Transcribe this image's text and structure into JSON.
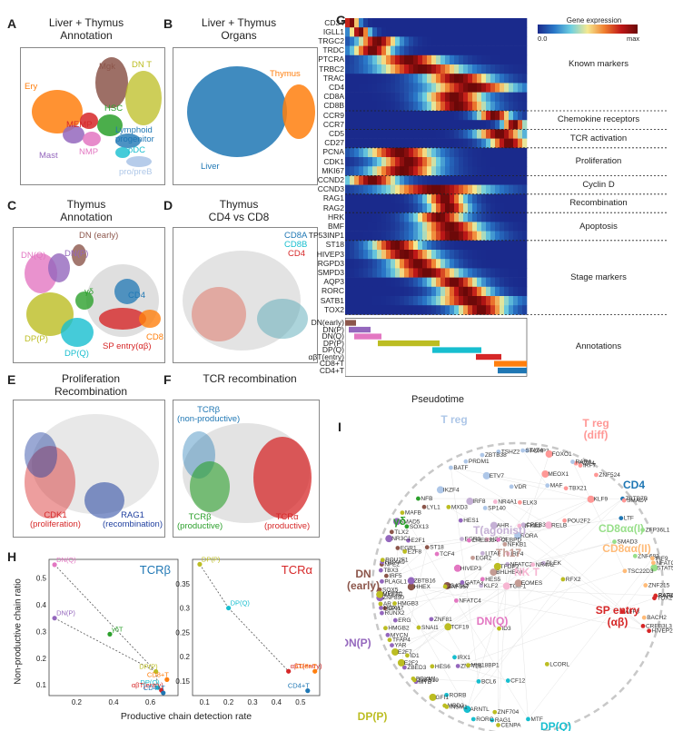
{
  "panels": {
    "A": {
      "letter": "A",
      "title": "Liver + Thymus\nAnnotation",
      "labels": {
        "mgk": "Mgk",
        "dnt": "DN T",
        "ery": "Ery",
        "hsc": "HSC",
        "memp": "MEMP",
        "lymph": "Lymphoid\nprogenitor",
        "mast": "Mast",
        "nmp": "NMP",
        "pdc": "pDC",
        "propreb": "pro/preB"
      }
    },
    "B": {
      "letter": "B",
      "title": "Liver + Thymus\nOrgans",
      "labels": {
        "thymus": "Thymus",
        "liver": "Liver"
      }
    },
    "C": {
      "letter": "C",
      "title": "Thymus\nAnnotation",
      "labels": {
        "dnearly": "DN (early)",
        "dnq": "DN(Q)",
        "dnp": "DN(P)",
        "gd": "γδ",
        "cd4": "CD4",
        "dpp": "DP(P)",
        "cd8": "CD8",
        "spentry": "SP entry(αβ)",
        "dpq": "DP(Q)"
      }
    },
    "D": {
      "letter": "D",
      "title": "Thymus\nCD4 vs CD8",
      "labels": {
        "cd8a": "CD8A",
        "cd8b": "CD8B",
        "cd4": "CD4"
      }
    },
    "E": {
      "letter": "E",
      "title": "Proliferation\nRecombination",
      "labels": {
        "cdk1": "CDK1\n(proliferation)",
        "rag1": "RAG1\n(recombination)"
      }
    },
    "F": {
      "letter": "F",
      "title": "TCR recombination",
      "labels": {
        "tcrb_np": "TCRβ\n(non-productive)",
        "tcrb_p": "TCRβ\n(productive)",
        "tcra_p": "TCRα\n(productive)"
      }
    },
    "G": {
      "letter": "G",
      "legend_title": "Gene expression",
      "legend_min": "0.0",
      "legend_max": "max",
      "xlabel": "Pseudotime"
    },
    "H": {
      "letter": "H",
      "ylabel": "Non-productive chain ratio",
      "xlabel": "Productive chain detection rate"
    },
    "I": {
      "letter": "I"
    }
  },
  "heatmap": {
    "genes": [
      "CD34",
      "IGLL1",
      "TRGC2",
      "TRDC",
      "PTCRA",
      "TRBC2",
      "TRAC",
      "CD4",
      "CD8A",
      "CD8B",
      "CCR9",
      "CCR7",
      "CD5",
      "CD27",
      "PCNA",
      "CDK1",
      "MKI67",
      "CCND2",
      "CCND3",
      "RAG1",
      "RAG2",
      "HRK",
      "BMF",
      "TP53INP1",
      "ST18",
      "HIVEP3",
      "RGPD3",
      "SMPD3",
      "AQP3",
      "RORC",
      "SATB1",
      "TOX2"
    ],
    "peaks": [
      0.03,
      0.08,
      0.18,
      0.15,
      0.35,
      0.42,
      0.62,
      0.7,
      0.6,
      0.62,
      0.82,
      0.93,
      0.85,
      0.9,
      0.3,
      0.35,
      0.32,
      0.15,
      0.5,
      0.55,
      0.57,
      0.52,
      0.58,
      0.6,
      0.28,
      0.33,
      0.4,
      0.45,
      0.6,
      0.66,
      0.7,
      0.75
    ],
    "widths": [
      0.05,
      0.06,
      0.12,
      0.12,
      0.2,
      0.25,
      0.2,
      0.25,
      0.18,
      0.18,
      0.1,
      0.07,
      0.14,
      0.12,
      0.2,
      0.18,
      0.2,
      0.15,
      0.3,
      0.12,
      0.12,
      0.15,
      0.18,
      0.2,
      0.15,
      0.18,
      0.16,
      0.2,
      0.15,
      0.15,
      0.22,
      0.15
    ],
    "sections": [
      {
        "name": "Known markers",
        "start": 0,
        "end": 9
      },
      {
        "name": "Chemokine receptors",
        "start": 10,
        "end": 11
      },
      {
        "name": "TCR activation",
        "start": 12,
        "end": 13
      },
      {
        "name": "Proliferation",
        "start": 14,
        "end": 16
      },
      {
        "name": "Cyclin D",
        "start": 17,
        "end": 18
      },
      {
        "name": "Recombination",
        "start": 19,
        "end": 20
      },
      {
        "name": "Apoptosis",
        "start": 21,
        "end": 23
      },
      {
        "name": "Stage markers",
        "start": 24,
        "end": 31
      }
    ],
    "annotations_label": "Annotations",
    "annotations": [
      {
        "name": "DN(early)",
        "color": "#8c564b",
        "start": 0.0,
        "end": 0.06
      },
      {
        "name": "DN(P)",
        "color": "#9467bd",
        "start": 0.02,
        "end": 0.14
      },
      {
        "name": "DN(Q)",
        "color": "#e377c2",
        "start": 0.05,
        "end": 0.2
      },
      {
        "name": "DP(P)",
        "color": "#bcbd22",
        "start": 0.18,
        "end": 0.52
      },
      {
        "name": "DP(Q)",
        "color": "#17becf",
        "start": 0.48,
        "end": 0.75
      },
      {
        "name": "αβT(entry)",
        "color": "#d62728",
        "start": 0.72,
        "end": 0.86
      },
      {
        "name": "CD8+T",
        "color": "#ff7f0e",
        "start": 0.82,
        "end": 1.0
      },
      {
        "name": "CD4+T",
        "color": "#1f77b4",
        "start": 0.84,
        "end": 1.0
      }
    ]
  },
  "chart_data": [
    {
      "type": "scatter",
      "title": "TCRβ",
      "xlabel": "Productive chain detection rate",
      "ylabel": "Non-productive chain ratio",
      "xticks": [
        0.2,
        0.4,
        0.6
      ],
      "yticks": [
        0.1,
        0.2,
        0.3,
        0.4,
        0.5
      ],
      "xlim": [
        0.05,
        0.75
      ],
      "ylim": [
        0.06,
        0.57
      ],
      "points": [
        {
          "label": "DN(Q)",
          "x": 0.08,
          "y": 0.55,
          "color": "#e377c2"
        },
        {
          "label": "DN(P)",
          "x": 0.08,
          "y": 0.35,
          "color": "#9467bd"
        },
        {
          "label": "γδT",
          "x": 0.38,
          "y": 0.29,
          "color": "#2ca02c"
        },
        {
          "label": "DP(P)",
          "x": 0.63,
          "y": 0.15,
          "color": "#bcbd22"
        },
        {
          "label": "DP(Q)",
          "x": 0.64,
          "y": 0.09,
          "color": "#17becf"
        },
        {
          "label": "CD8+T",
          "x": 0.69,
          "y": 0.12,
          "color": "#ff7f0e"
        },
        {
          "label": "αβT(entry)",
          "x": 0.66,
          "y": 0.08,
          "color": "#d62728"
        },
        {
          "label": "CD4+T",
          "x": 0.67,
          "y": 0.07,
          "color": "#1f77b4"
        }
      ],
      "arrows": [
        [
          0,
          3
        ],
        [
          1,
          3
        ],
        [
          3,
          4
        ]
      ]
    },
    {
      "type": "scatter",
      "title": "TCRα",
      "xticks": [
        0.1,
        0.2,
        0.3,
        0.4,
        0.5
      ],
      "yticks": [
        0.15,
        0.2,
        0.25,
        0.3,
        0.35
      ],
      "xlim": [
        0.05,
        0.58
      ],
      "ylim": [
        0.12,
        0.4
      ],
      "points": [
        {
          "label": "DP(P)",
          "x": 0.08,
          "y": 0.39,
          "color": "#bcbd22"
        },
        {
          "label": "DP(Q)",
          "x": 0.2,
          "y": 0.3,
          "color": "#17becf"
        },
        {
          "label": "αβT(entry)",
          "x": 0.45,
          "y": 0.17,
          "color": "#d62728"
        },
        {
          "label": "CD8+T",
          "x": 0.56,
          "y": 0.17,
          "color": "#ff7f0e"
        },
        {
          "label": "CD4+T",
          "x": 0.53,
          "y": 0.13,
          "color": "#1f77b4"
        }
      ],
      "arrows": [
        [
          0,
          1
        ],
        [
          1,
          2
        ]
      ]
    }
  ],
  "network": {
    "groups": [
      {
        "label": "T reg",
        "color": "#aec7e8"
      },
      {
        "label": "T reg\n(diff)",
        "color": "#ff9896"
      },
      {
        "label": "CD4",
        "color": "#1f77b4"
      },
      {
        "label": "CD8αα(I)",
        "color": "#98df8a"
      },
      {
        "label": "CD8αα(II)",
        "color": "#ffbb78"
      },
      {
        "label": "SP entry\n(αβ)",
        "color": "#d62728"
      },
      {
        "label": "γδ",
        "color": "#2ca02c"
      },
      {
        "label": "DN\n(early)",
        "color": "#8c564b"
      },
      {
        "label": "DN(P)",
        "color": "#9467bd"
      },
      {
        "label": "T(agonist)",
        "color": "#c5b0d5"
      },
      {
        "label": "NK T",
        "color": "#f7b6d2"
      },
      {
        "label": "Th17",
        "color": "#c49c94"
      },
      {
        "label": "DN(Q)",
        "color": "#e377c2"
      },
      {
        "label": "DP(P)",
        "color": "#bcbd22"
      },
      {
        "label": "DP(Q)",
        "color": "#17becf"
      }
    ],
    "genes": [
      {
        "g": "ETV7",
        "c": 0
      },
      {
        "g": "TSHZ2",
        "c": 0
      },
      {
        "g": "VDR",
        "c": 0
      },
      {
        "g": "TBX21",
        "c": 1
      },
      {
        "g": "IKZF4",
        "c": 1
      },
      {
        "g": "KLF9",
        "c": 1
      },
      {
        "g": "LTF",
        "c": 2
      },
      {
        "g": "PRDM1",
        "c": 0
      },
      {
        "g": "FOXP3",
        "c": 0
      },
      {
        "g": "SP140",
        "c": 0
      },
      {
        "g": "MEOX1",
        "c": 1
      },
      {
        "g": "ZNF524",
        "c": 1
      },
      {
        "g": "ZBTB7B",
        "c": 2
      },
      {
        "g": "ZBTB38",
        "c": 0
      },
      {
        "g": "POU2F2",
        "c": 1
      },
      {
        "g": "FOXO1",
        "c": 1
      },
      {
        "g": "ZNF683",
        "c": 3
      },
      {
        "g": "ZNF215",
        "c": 4
      },
      {
        "g": "IRF9",
        "c": 4
      },
      {
        "g": "MAF",
        "c": 0
      },
      {
        "g": "IKZF4",
        "c": 0
      },
      {
        "g": "STAT4",
        "c": 0
      },
      {
        "g": "SMAD7",
        "c": 1
      },
      {
        "g": "ELK3",
        "c": 1
      },
      {
        "g": "RARG",
        "c": 4
      },
      {
        "g": "RORA",
        "c": 0
      },
      {
        "g": "BATF",
        "c": 0
      },
      {
        "g": "RARA",
        "c": 0
      },
      {
        "g": "IRF7",
        "c": 1
      },
      {
        "g": "ZFP36L1",
        "c": 3
      },
      {
        "g": "STAT5A",
        "c": 3
      },
      {
        "g": "SOX13",
        "c": 6
      },
      {
        "g": "IRF5",
        "c": 7
      },
      {
        "g": "EGR1",
        "c": 7
      },
      {
        "g": "LITAF",
        "c": 9
      },
      {
        "g": "AHR",
        "c": 9
      },
      {
        "g": "NFATC2",
        "c": 9
      },
      {
        "g": "IRF4",
        "c": 10
      },
      {
        "g": "NFKB2",
        "c": 10
      },
      {
        "g": "NFB",
        "c": 6
      },
      {
        "g": "HHEX",
        "c": 7
      },
      {
        "g": "NFE2",
        "c": 7
      },
      {
        "g": "EGR3",
        "c": 9
      },
      {
        "g": "CREB3L2",
        "c": 9
      },
      {
        "g": "KLF2",
        "c": 9
      },
      {
        "g": "BHLHE40",
        "c": 11
      },
      {
        "g": "NFKB1",
        "c": 11
      },
      {
        "g": "ST18",
        "c": 7
      },
      {
        "g": "SPI1",
        "c": 7
      },
      {
        "g": "TLX2",
        "c": 7
      },
      {
        "g": "IRF8",
        "c": 9
      },
      {
        "g": "PLEK",
        "c": 9
      },
      {
        "g": "NR4A2",
        "c": 10
      },
      {
        "g": "HOPX",
        "c": 10
      },
      {
        "g": "SMAD3",
        "c": 3
      },
      {
        "g": "GATA2",
        "c": 7
      },
      {
        "g": "HOXA7",
        "c": 8
      },
      {
        "g": "PLAGL1",
        "c": 8
      },
      {
        "g": "ERG",
        "c": 8
      },
      {
        "g": "MEF2C",
        "c": 8
      },
      {
        "g": "RELB",
        "c": 10
      },
      {
        "g": "TSC22D3",
        "c": 4
      },
      {
        "g": "NFATC1",
        "c": 4
      },
      {
        "g": "SOX5",
        "c": 7
      },
      {
        "g": "LYL1",
        "c": 7
      },
      {
        "g": "TGIF1",
        "c": 10
      },
      {
        "g": "NR4A1",
        "c": 10
      },
      {
        "g": "BACH2",
        "c": 4
      },
      {
        "g": "CREB3L3",
        "c": 5
      },
      {
        "g": "TOX2",
        "c": 5
      },
      {
        "g": "ZBTB16",
        "c": 8
      },
      {
        "g": "MYCN",
        "c": 8
      },
      {
        "g": "HOXA9",
        "c": 8
      },
      {
        "g": "ZNF81",
        "c": 8
      },
      {
        "g": "RUNX2",
        "c": 8
      },
      {
        "g": "EOMES",
        "c": 11
      },
      {
        "g": "EGR2",
        "c": 11
      },
      {
        "g": "E2F1",
        "c": 8
      },
      {
        "g": "ZBED3",
        "c": 8
      },
      {
        "g": "TBX3",
        "c": 8
      },
      {
        "g": "HIVEP3",
        "c": 12
      },
      {
        "g": "HIVEP2",
        "c": 5
      },
      {
        "g": "AFF3",
        "c": 5
      },
      {
        "g": "GATA3",
        "c": 8
      },
      {
        "g": "YAR",
        "c": 8
      },
      {
        "g": "SMAD5",
        "c": 8
      },
      {
        "g": "CREB3L4",
        "c": 12
      },
      {
        "g": "HES5",
        "c": 12
      },
      {
        "g": "SATB1",
        "c": 5
      },
      {
        "g": "ZNF726",
        "c": 8
      },
      {
        "g": "ZNF850",
        "c": 8
      },
      {
        "g": "HES1",
        "c": 8
      },
      {
        "g": "TCF4",
        "c": 12
      },
      {
        "g": "CEBPD",
        "c": 12
      },
      {
        "g": "MYB",
        "c": 8
      },
      {
        "g": "NR3C1",
        "c": 8
      },
      {
        "g": "ID1",
        "c": 13
      },
      {
        "g": "SNAI1",
        "c": 13
      },
      {
        "g": "HES6",
        "c": 13
      },
      {
        "g": "TFAP4",
        "c": 13
      },
      {
        "g": "TCF19",
        "c": 13
      },
      {
        "g": "ZNF519",
        "c": 13
      },
      {
        "g": "HMGB3",
        "c": 13
      },
      {
        "g": "MIS18BP1",
        "c": 13
      },
      {
        "g": "NFATC4",
        "c": 12
      },
      {
        "g": "E2F7",
        "c": 13
      },
      {
        "g": "ZNF367",
        "c": 13
      },
      {
        "g": "MBD2",
        "c": 13
      },
      {
        "g": "AR",
        "c": 13
      },
      {
        "g": "ID3",
        "c": 13
      },
      {
        "g": "ARNTL",
        "c": 14
      },
      {
        "g": "FOXM1",
        "c": 13
      },
      {
        "g": "E2F8",
        "c": 13
      },
      {
        "g": "ZNF704",
        "c": 13
      },
      {
        "g": "HMGB2",
        "c": 13
      },
      {
        "g": "TFDP2",
        "c": 13
      },
      {
        "g": "INSM1",
        "c": 13
      },
      {
        "g": "BCL6",
        "c": 14
      },
      {
        "g": "POU2F1",
        "c": 13
      },
      {
        "g": "LCORL",
        "c": 13
      },
      {
        "g": "E2F2",
        "c": 13
      },
      {
        "g": "RAG1",
        "c": 14
      },
      {
        "g": "RORB",
        "c": 14
      },
      {
        "g": "MXD3",
        "c": 13
      },
      {
        "g": "CENPA",
        "c": 13
      },
      {
        "g": "MYEF2",
        "c": 13
      },
      {
        "g": "CF12",
        "c": 14
      },
      {
        "g": "RORC",
        "c": 14
      },
      {
        "g": "IRX1",
        "c": 14
      },
      {
        "g": "RFX2",
        "c": 13
      },
      {
        "g": "GFI1",
        "c": 13
      },
      {
        "g": "MTF",
        "c": 14
      },
      {
        "g": "MAFB",
        "c": 13
      }
    ]
  }
}
